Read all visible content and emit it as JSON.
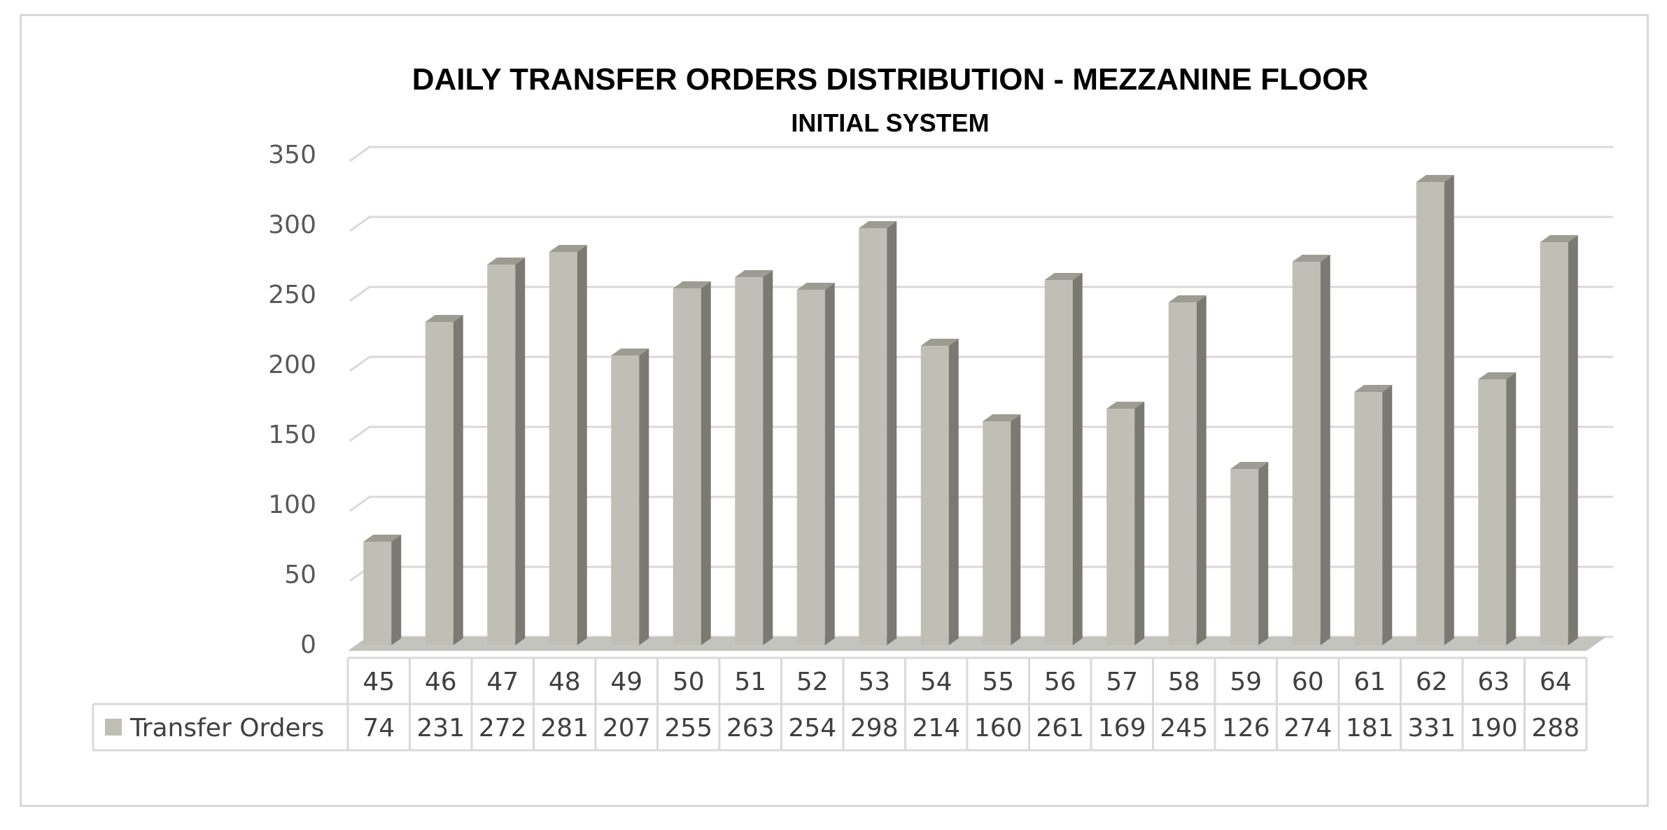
{
  "colors": {
    "bar_front": "#bfbfb5",
    "bar_side": "#7a7a72",
    "bar_top": "#9c9c93",
    "floor": "#c4c4be",
    "grid": "#d9d9d9",
    "table_border": "#d9d9d9",
    "legend_key": "#bfbfb5"
  },
  "chart_data": {
    "type": "bar",
    "title": "DAILY TRANSFER  ORDERS DISTRIBUTION - MEZZANINE FLOOR",
    "subtitle": "INITIAL SYSTEM",
    "categories": [
      "45",
      "46",
      "47",
      "48",
      "49",
      "50",
      "51",
      "52",
      "53",
      "54",
      "55",
      "56",
      "57",
      "58",
      "59",
      "60",
      "61",
      "62",
      "63",
      "64"
    ],
    "series": [
      {
        "name": "Transfer Orders",
        "values": [
          74,
          231,
          272,
          281,
          207,
          255,
          263,
          254,
          298,
          214,
          160,
          261,
          169,
          245,
          126,
          274,
          181,
          331,
          190,
          288
        ]
      }
    ],
    "ylim": [
      0,
      350
    ],
    "yticks": [
      0,
      50,
      100,
      150,
      200,
      250,
      300,
      350
    ],
    "grid": true,
    "legend": "data-table",
    "style": "3d-column"
  }
}
